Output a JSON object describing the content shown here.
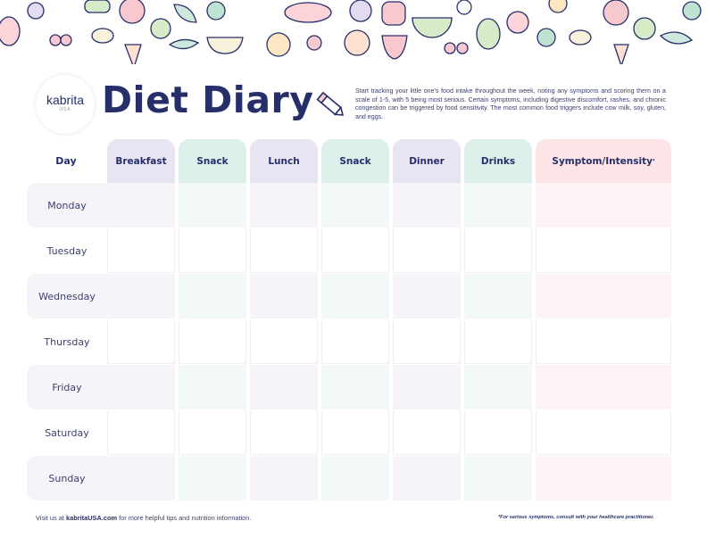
{
  "logo": {
    "brand": "kabrita",
    "sub": "USA"
  },
  "title": "Diet Diary",
  "intro": "Start tracking your little one's food intake throughout the week, noting any symptoms and scoring them on a scale of 1-5, with 5 being most serious. Certain symptoms, including digestive discomfort, rashes, and chronic congestion can be triggered by food sensitivity. The most common food triggers include cow milk, soy, gluten, and eggs.",
  "table": {
    "day_header": "Day",
    "columns": [
      {
        "label": "Breakfast",
        "tone": "purple"
      },
      {
        "label": "Snack",
        "tone": "mint"
      },
      {
        "label": "Lunch",
        "tone": "purple"
      },
      {
        "label": "Snack",
        "tone": "mint"
      },
      {
        "label": "Dinner",
        "tone": "purple"
      },
      {
        "label": "Drinks",
        "tone": "mint"
      },
      {
        "label": "Symptom/Intensity",
        "tone": "pink",
        "footnote_mark": "*"
      }
    ],
    "days": [
      "Monday",
      "Tuesday",
      "Wednesday",
      "Thursday",
      "Friday",
      "Saturday",
      "Sunday"
    ]
  },
  "colors": {
    "navy": "#262f6a",
    "purple_header": "#e9e4f1",
    "mint_header": "#dcefeb",
    "pink_header": "#fde4e6",
    "purple_row": "#f6f4f9",
    "mint_row": "#f1f8f7",
    "pink_row": "#fff4f5"
  },
  "footer": {
    "left_prefix": "Visit us at ",
    "link": "kabritaUSA.com",
    "left_suffix": " for more helpful tips and nutrition information.",
    "right": "*For serious symptoms, consult with your healthcare practitioner."
  },
  "decor_icons": [
    "radish-icon",
    "cherries-icon",
    "cashew-icon",
    "apple-icon",
    "leaf-icon",
    "broccoli-icon",
    "kiwi-icon",
    "fish-icon",
    "grapes-icon",
    "pepper-icon",
    "melon-icon",
    "carrot-icon",
    "peas-icon",
    "bowl-icon",
    "orange-icon",
    "raspberry-icon",
    "peach-icon",
    "strawberry-icon",
    "avocado-icon"
  ]
}
